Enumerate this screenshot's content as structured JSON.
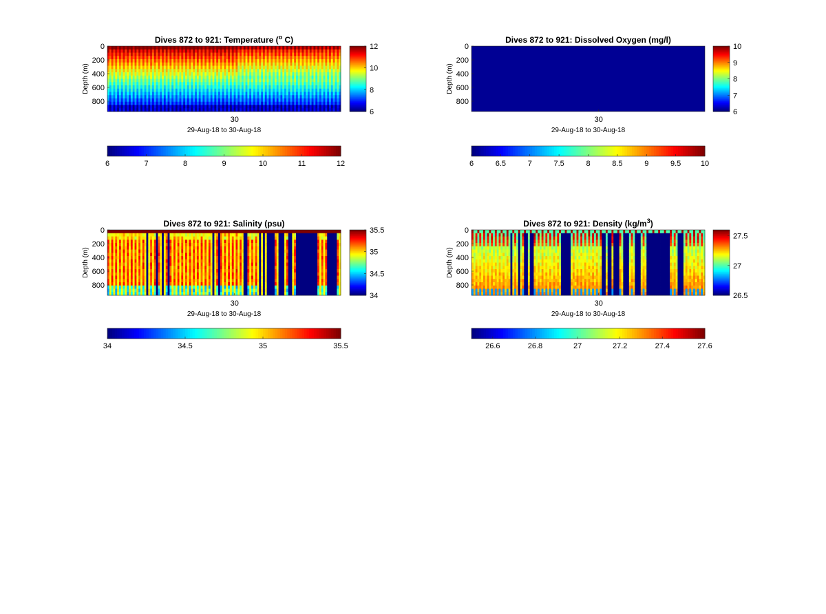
{
  "chart_data": [
    {
      "type": "heatmap",
      "title": "Dives 872 to 921: Temperature (° C)",
      "title_main": "Dives 872 to 921: Temperature (",
      "title_sup": "o",
      "title_tail": " C)",
      "xlabel": "29-Aug-18 to 30-Aug-18",
      "ylabel": "Depth (m)",
      "x_ticks": [
        "30"
      ],
      "y_ticks": [
        0,
        200,
        400,
        600,
        800
      ],
      "ylim": [
        0,
        950
      ],
      "y_reversed": true,
      "colormap": "jet",
      "clim": [
        6,
        12
      ],
      "colorbar_side_ticks": [
        "6",
        "8",
        "10",
        "12"
      ],
      "colorbar_bottom_ticks": [
        "6",
        "7",
        "8",
        "9",
        "10",
        "11",
        "12"
      ],
      "profile": "temperature"
    },
    {
      "type": "heatmap",
      "title": "Dives 872 to 921: Dissolved Oxygen (mg/l)",
      "title_main": "Dives 872 to 921: Dissolved Oxygen (mg/l)",
      "title_sup": "",
      "title_tail": "",
      "xlabel": "29-Aug-18 to 30-Aug-18",
      "ylabel": "Depth (m)",
      "x_ticks": [
        "30"
      ],
      "y_ticks": [
        0,
        200,
        400,
        600,
        800
      ],
      "ylim": [
        0,
        950
      ],
      "y_reversed": true,
      "colormap": "jet",
      "clim": [
        6,
        10
      ],
      "colorbar_side_ticks": [
        "6",
        "7",
        "8",
        "9",
        "10"
      ],
      "colorbar_bottom_ticks": [
        "6",
        "6.5",
        "7",
        "7.5",
        "8",
        "8.5",
        "9",
        "9.5",
        "10"
      ],
      "profile": "oxygen"
    },
    {
      "type": "heatmap",
      "title": "Dives 872 to 921: Salinity (psu)",
      "title_main": "Dives 872 to 921: Salinity (psu)",
      "title_sup": "",
      "title_tail": "",
      "xlabel": "29-Aug-18 to 30-Aug-18",
      "ylabel": "Depth (m)",
      "x_ticks": [
        "30"
      ],
      "y_ticks": [
        0,
        200,
        400,
        600,
        800
      ],
      "ylim": [
        0,
        950
      ],
      "y_reversed": true,
      "colormap": "jet",
      "clim": [
        34,
        35.5
      ],
      "colorbar_side_ticks": [
        "34",
        "34.5",
        "35",
        "35.5"
      ],
      "colorbar_bottom_ticks": [
        "34",
        "34.5",
        "35",
        "35.5"
      ],
      "profile": "salinity"
    },
    {
      "type": "heatmap",
      "title": "Dives 872 to 921: Density (kg/m³)",
      "title_main": "Dives 872 to 921: Density (kg/m",
      "title_sup": "3",
      "title_tail": ")",
      "xlabel": "29-Aug-18 to 30-Aug-18",
      "ylabel": "Depth (m)",
      "x_ticks": [
        "30"
      ],
      "y_ticks": [
        0,
        200,
        400,
        600,
        800
      ],
      "ylim": [
        0,
        950
      ],
      "y_reversed": true,
      "colormap": "jet",
      "clim": [
        26.5,
        27.6
      ],
      "colorbar_side_ticks": [
        "26.5",
        "27",
        "27.5"
      ],
      "colorbar_bottom_ticks": [
        "26.6",
        "26.8",
        "27",
        "27.2",
        "27.4",
        "27.6"
      ],
      "profile": "density"
    }
  ]
}
